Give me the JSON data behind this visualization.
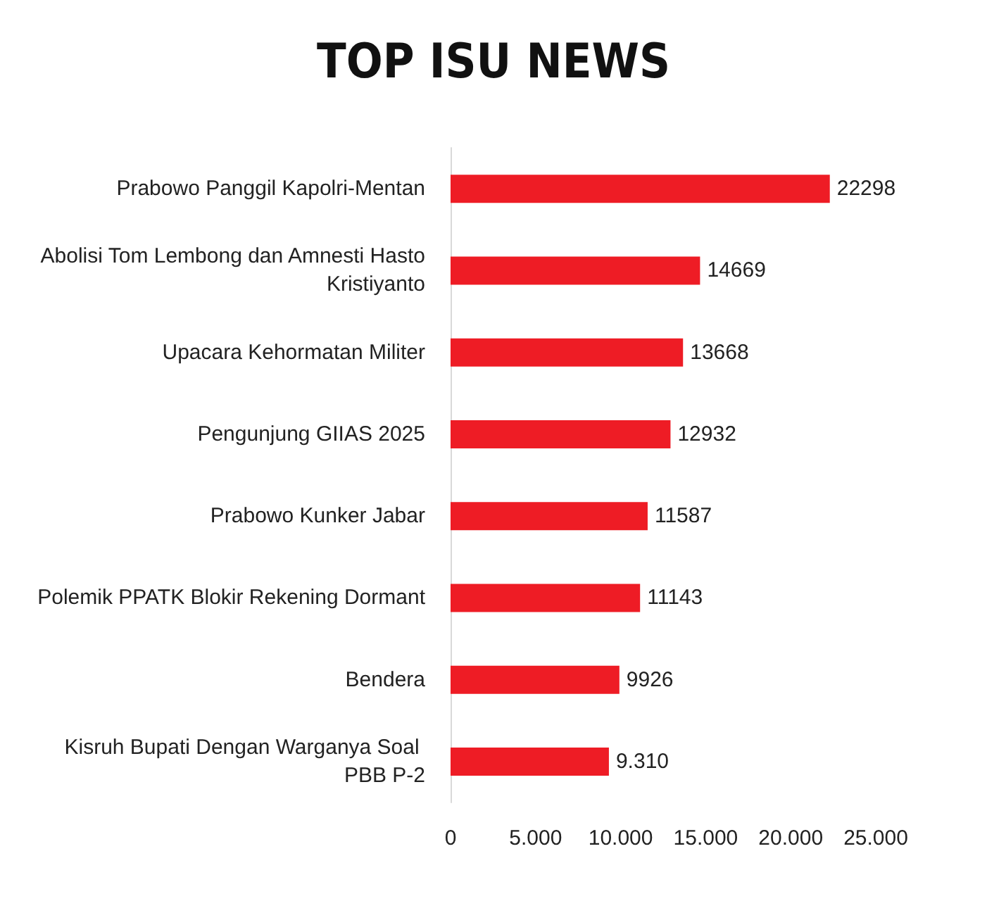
{
  "chart_data": {
    "type": "bar",
    "orientation": "horizontal",
    "title": "TOP ISU NEWS",
    "categories": [
      "Prabowo Panggil Kapolri-Mentan",
      "Abolisi Tom Lembong dan Amnesti Hasto Kristiyanto",
      "Upacara Kehormatan Militer",
      "Pengunjung GIIAS 2025",
      "Prabowo Kunker Jabar",
      "Polemik PPATK Blokir Rekening Dormant",
      "Bendera",
      "Kisruh Bupati Dengan Warganya Soal PBB P-2"
    ],
    "values": [
      22298,
      14669,
      13668,
      12932,
      11587,
      11143,
      9926,
      9310
    ],
    "value_labels": [
      "22298",
      "14669",
      "13668",
      "12932",
      "11587",
      "11143",
      "9926",
      "9.310"
    ],
    "color": "#ee1c25",
    "xlim": [
      0,
      25000
    ],
    "xticks": [
      {
        "value": 0,
        "label": "0"
      },
      {
        "value": 5000,
        "label": "5.000"
      },
      {
        "value": 10000,
        "label": "10.000"
      },
      {
        "value": 15000,
        "label": "15.000"
      },
      {
        "value": 20000,
        "label": "20.000"
      },
      {
        "value": 25000,
        "label": "25.000"
      }
    ],
    "grid": false
  }
}
